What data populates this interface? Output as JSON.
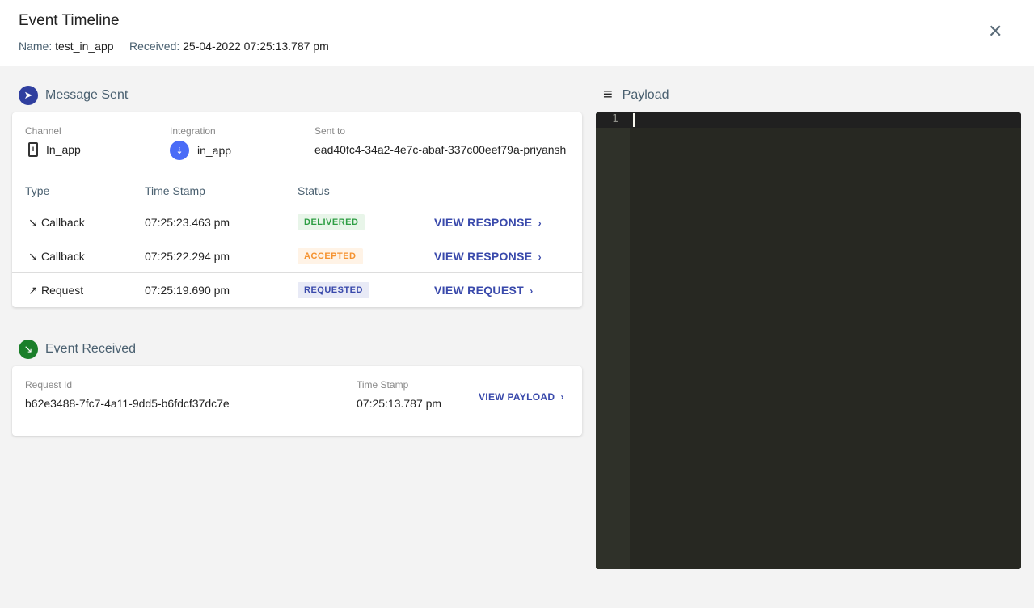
{
  "header": {
    "title": "Event Timeline",
    "name_label": "Name:",
    "name": "test_in_app",
    "received_label": "Received:",
    "received": "25-04-2022 07:25:13.787 pm",
    "close_icon": "close-icon"
  },
  "message_sent": {
    "title": "Message Sent",
    "channel_label": "Channel",
    "channel": "In_app",
    "integration_label": "Integration",
    "integration": "in_app",
    "sent_to_label": "Sent to",
    "sent_to": "ead40fc4-34a2-4e7c-abaf-337c00eef79a-priyansh",
    "columns": [
      "Type",
      "Time Stamp",
      "Status"
    ],
    "rows": [
      {
        "type": "Callback",
        "icon": "arrow-down-right-icon",
        "time": "07:25:23.463 pm",
        "status": "DELIVERED",
        "action": "VIEW RESPONSE"
      },
      {
        "type": "Callback",
        "icon": "arrow-down-right-icon",
        "time": "07:25:22.294 pm",
        "status": "ACCEPTED",
        "action": "VIEW RESPONSE"
      },
      {
        "type": "Request",
        "icon": "arrow-up-right-icon",
        "time": "07:25:19.690 pm",
        "status": "REQUESTED",
        "action": "VIEW REQUEST"
      }
    ]
  },
  "event_received": {
    "title": "Event Received",
    "request_id_label": "Request Id",
    "request_id": "b62e3488-7fc7-4a11-9dd5-b6fdcf37dc7e",
    "time_label": "Time Stamp",
    "time": "07:25:13.787 pm",
    "action": "VIEW PAYLOAD"
  },
  "payload": {
    "title": "Payload",
    "line_number": "1"
  },
  "colors": {
    "delivered": "#2e9e44",
    "accepted": "#f5922f",
    "requested": "#3949ab",
    "accent": "#3949ab"
  }
}
